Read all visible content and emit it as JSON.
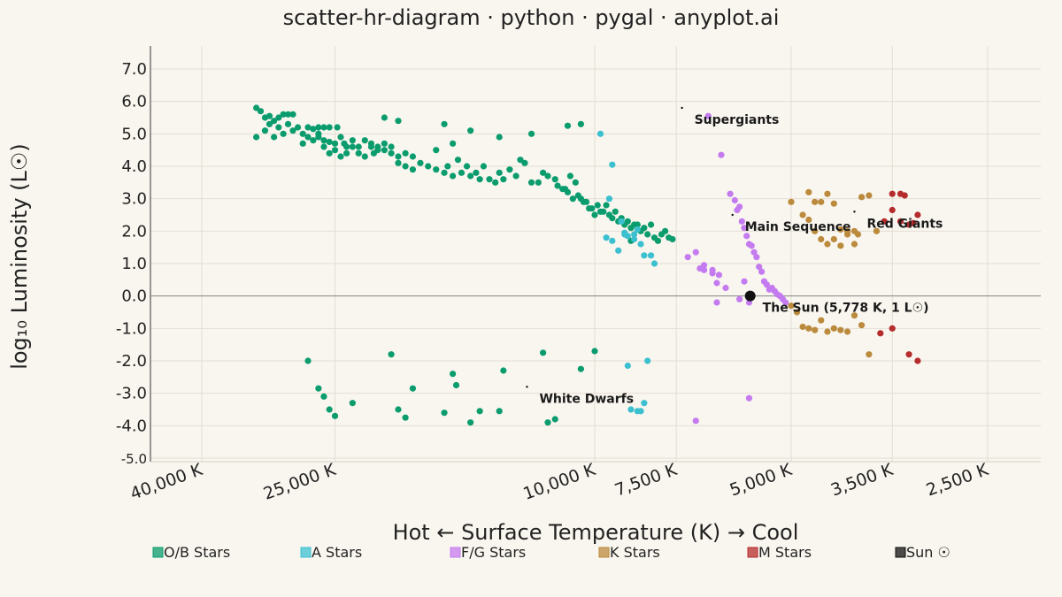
{
  "page": {
    "title": "scatter-hr-diagram · python · pygal · anyplot.ai"
  },
  "colors": {
    "background": "#F9F6EF",
    "grid": "#E3DED4",
    "ob": "#0B9C6E",
    "a": "#3CC0D0",
    "fg": "#C57BF0",
    "k": "#BB8A3C",
    "m": "#B52C2C",
    "sun": "#111111"
  },
  "chart_data": {
    "type": "scatter",
    "title": "scatter-hr-diagram · python · pygal · anyplot.ai",
    "xlabel": "Hot ← Surface Temperature (K) → Cool",
    "ylabel": "log₁₀ Luminosity (L☉)",
    "x_scale": "log-reversed",
    "xlim": [
      40000,
      2200
    ],
    "ylim": [
      -5,
      7.3
    ],
    "x_ticks": [
      {
        "value": 40000,
        "label": "40,000 K"
      },
      {
        "value": 25000,
        "label": "25,000 K"
      },
      {
        "value": 10000,
        "label": "10,000 K"
      },
      {
        "value": 7500,
        "label": "7,500 K"
      },
      {
        "value": 5000,
        "label": "5,000 K"
      },
      {
        "value": 3500,
        "label": "3,500 K"
      },
      {
        "value": 2500,
        "label": "2,500 K"
      }
    ],
    "y_ticks": [
      {
        "value": 7,
        "label": "7.0"
      },
      {
        "value": 6,
        "label": "6.0"
      },
      {
        "value": 5,
        "label": "5.0"
      },
      {
        "value": 4,
        "label": "4.0"
      },
      {
        "value": 3,
        "label": "3.0"
      },
      {
        "value": 2,
        "label": "2.0"
      },
      {
        "value": 1,
        "label": "1.0"
      },
      {
        "value": 0,
        "label": "0.0"
      },
      {
        "value": -1,
        "label": "-1.0"
      },
      {
        "value": -2,
        "label": "-2.0"
      },
      {
        "value": -3,
        "label": "-3.0"
      },
      {
        "value": -4,
        "label": "-4.0"
      },
      {
        "value": -5,
        "label": "-5.0"
      }
    ],
    "grid": true,
    "legend_position": "bottom",
    "series": [
      {
        "name": "O/B Stars",
        "color": "#0B9C6E",
        "points": [
          [
            33000,
            5.8
          ],
          [
            32500,
            5.7
          ],
          [
            32000,
            5.5
          ],
          [
            31500,
            5.55
          ],
          [
            31000,
            5.4
          ],
          [
            30500,
            5.5
          ],
          [
            30000,
            5.6
          ],
          [
            29500,
            5.6
          ],
          [
            29000,
            5.6
          ],
          [
            33000,
            4.9
          ],
          [
            32000,
            5.1
          ],
          [
            31500,
            5.3
          ],
          [
            31000,
            4.9
          ],
          [
            30500,
            5.2
          ],
          [
            30000,
            5.0
          ],
          [
            29500,
            5.3
          ],
          [
            29000,
            5.1
          ],
          [
            28500,
            5.2
          ],
          [
            28000,
            5.0
          ],
          [
            27500,
            5.2
          ],
          [
            27000,
            5.15
          ],
          [
            26500,
            5.2
          ],
          [
            26000,
            5.2
          ],
          [
            25500,
            5.2
          ],
          [
            28000,
            4.7
          ],
          [
            27500,
            4.9
          ],
          [
            27000,
            4.8
          ],
          [
            26500,
            4.9
          ],
          [
            26000,
            4.8
          ],
          [
            25500,
            4.75
          ],
          [
            25000,
            4.7
          ],
          [
            24800,
            5.2
          ],
          [
            24500,
            4.9
          ],
          [
            24200,
            4.7
          ],
          [
            24000,
            4.6
          ],
          [
            23500,
            4.8
          ],
          [
            23000,
            4.6
          ],
          [
            22500,
            4.8
          ],
          [
            22000,
            4.6
          ],
          [
            21800,
            4.4
          ],
          [
            21500,
            4.5
          ],
          [
            21000,
            4.5
          ],
          [
            20500,
            4.4
          ],
          [
            20000,
            4.3
          ],
          [
            19500,
            4.4
          ],
          [
            19000,
            4.3
          ],
          [
            26500,
            5.0
          ],
          [
            26000,
            4.6
          ],
          [
            25500,
            4.4
          ],
          [
            25000,
            4.5
          ],
          [
            24500,
            4.3
          ],
          [
            24000,
            4.4
          ],
          [
            23500,
            4.6
          ],
          [
            23000,
            4.4
          ],
          [
            22500,
            4.3
          ],
          [
            22000,
            4.7
          ],
          [
            21500,
            4.6
          ],
          [
            21000,
            4.7
          ],
          [
            20500,
            4.6
          ],
          [
            20000,
            4.1
          ],
          [
            19500,
            4.0
          ],
          [
            19000,
            3.9
          ],
          [
            18500,
            4.1
          ],
          [
            18000,
            4.0
          ],
          [
            17500,
            3.9
          ],
          [
            17000,
            3.8
          ],
          [
            16800,
            4.0
          ],
          [
            16500,
            3.7
          ],
          [
            16200,
            4.2
          ],
          [
            16000,
            3.8
          ],
          [
            15700,
            4.0
          ],
          [
            15500,
            3.7
          ],
          [
            15200,
            3.8
          ],
          [
            15000,
            3.6
          ],
          [
            14800,
            4.0
          ],
          [
            14500,
            3.6
          ],
          [
            14200,
            3.5
          ],
          [
            14000,
            3.8
          ],
          [
            13800,
            3.6
          ],
          [
            13500,
            3.9
          ],
          [
            13200,
            3.7
          ],
          [
            13000,
            4.2
          ],
          [
            12800,
            4.1
          ],
          [
            12500,
            3.5
          ],
          [
            12200,
            3.5
          ],
          [
            12000,
            3.8
          ],
          [
            11800,
            3.7
          ],
          [
            11500,
            3.6
          ],
          [
            11200,
            3.3
          ],
          [
            11000,
            3.2
          ],
          [
            10800,
            3.0
          ],
          [
            10600,
            3.1
          ],
          [
            10400,
            2.9
          ],
          [
            10200,
            2.7
          ],
          [
            10000,
            2.5
          ],
          [
            9800,
            2.6
          ],
          [
            9600,
            2.8
          ],
          [
            9400,
            2.4
          ],
          [
            9200,
            2.3
          ],
          [
            9000,
            2.2
          ],
          [
            8800,
            2.1
          ],
          [
            8600,
            2.2
          ],
          [
            11400,
            3.4
          ],
          [
            11100,
            3.3
          ],
          [
            10900,
            3.7
          ],
          [
            10700,
            3.5
          ],
          [
            10500,
            3.0
          ],
          [
            10300,
            2.9
          ],
          [
            10100,
            2.7
          ],
          [
            9900,
            2.8
          ],
          [
            9700,
            2.6
          ],
          [
            9500,
            2.5
          ],
          [
            9300,
            2.6
          ],
          [
            9100,
            2.4
          ],
          [
            8900,
            2.3
          ],
          [
            8700,
            2.2
          ],
          [
            8500,
            2.0
          ],
          [
            8400,
            2.1
          ],
          [
            8300,
            1.9
          ],
          [
            8200,
            2.2
          ],
          [
            8100,
            1.8
          ],
          [
            8000,
            1.7
          ],
          [
            7900,
            1.9
          ],
          [
            7800,
            2.0
          ],
          [
            7700,
            1.8
          ],
          [
            7600,
            1.75
          ],
          [
            21000,
            5.5
          ],
          [
            20000,
            5.4
          ],
          [
            17000,
            5.3
          ],
          [
            15500,
            5.1
          ],
          [
            14000,
            4.9
          ],
          [
            12500,
            5.0
          ],
          [
            11000,
            5.25
          ],
          [
            10500,
            5.3
          ],
          [
            17500,
            4.5
          ],
          [
            16500,
            4.7
          ],
          [
            8800,
            1.7
          ],
          [
            27500,
            -2.0
          ],
          [
            26500,
            -2.85
          ],
          [
            26000,
            -3.1
          ],
          [
            25500,
            -3.5
          ],
          [
            25000,
            -3.7
          ],
          [
            23500,
            -3.3
          ],
          [
            20500,
            -1.8
          ],
          [
            20000,
            -3.5
          ],
          [
            19500,
            -3.75
          ],
          [
            19000,
            -2.85
          ],
          [
            17000,
            -3.6
          ],
          [
            16500,
            -2.4
          ],
          [
            16300,
            -2.75
          ],
          [
            15500,
            -3.9
          ],
          [
            15000,
            -3.55
          ],
          [
            14000,
            -3.55
          ],
          [
            13800,
            -2.3
          ],
          [
            12000,
            -1.75
          ],
          [
            11800,
            -3.9
          ],
          [
            11500,
            -3.8
          ],
          [
            10500,
            -2.25
          ],
          [
            10000,
            -1.7
          ]
        ]
      },
      {
        "name": "A Stars",
        "color": "#3CC0D0",
        "points": [
          [
            9800,
            5.0
          ],
          [
            9400,
            4.05
          ],
          [
            9500,
            3.0
          ],
          [
            9100,
            2.3
          ],
          [
            9000,
            1.95
          ],
          [
            8700,
            1.9
          ],
          [
            8500,
            1.6
          ],
          [
            8200,
            1.25
          ],
          [
            9200,
            1.4
          ],
          [
            9600,
            1.8
          ],
          [
            9400,
            1.7
          ],
          [
            8900,
            1.85
          ],
          [
            8600,
            2.05
          ],
          [
            8400,
            1.25
          ],
          [
            8100,
            1.0
          ],
          [
            8700,
            1.75
          ],
          [
            9000,
            1.9
          ],
          [
            8800,
            -3.5
          ],
          [
            8600,
            -3.55
          ],
          [
            8500,
            -3.55
          ],
          [
            8400,
            -3.3
          ],
          [
            8300,
            -2.0
          ],
          [
            8900,
            -2.15
          ]
        ]
      },
      {
        "name": "F/G Stars",
        "color": "#C57BF0",
        "points": [
          [
            6700,
            5.55
          ],
          [
            6400,
            4.35
          ],
          [
            6200,
            3.15
          ],
          [
            6100,
            2.95
          ],
          [
            6050,
            2.65
          ],
          [
            6000,
            2.75
          ],
          [
            5950,
            2.3
          ],
          [
            5900,
            2.1
          ],
          [
            5850,
            1.85
          ],
          [
            5800,
            1.6
          ],
          [
            5750,
            1.55
          ],
          [
            5700,
            1.35
          ],
          [
            5650,
            1.2
          ],
          [
            5600,
            0.9
          ],
          [
            5550,
            0.75
          ],
          [
            5500,
            0.45
          ],
          [
            5450,
            0.35
          ],
          [
            5400,
            0.2
          ],
          [
            5350,
            0.25
          ],
          [
            5300,
            0.15
          ],
          [
            5250,
            0.05
          ],
          [
            5200,
            0.0
          ],
          [
            5150,
            -0.1
          ],
          [
            5100,
            -0.2
          ],
          [
            7200,
            1.2
          ],
          [
            7000,
            1.35
          ],
          [
            6900,
            0.85
          ],
          [
            6800,
            0.8
          ],
          [
            6600,
            0.7
          ],
          [
            6500,
            0.4
          ],
          [
            6450,
            0.65
          ],
          [
            6300,
            0.25
          ],
          [
            6000,
            -0.1
          ],
          [
            5800,
            -0.2
          ],
          [
            6500,
            -0.2
          ],
          [
            5900,
            0.45
          ],
          [
            5800,
            -3.15
          ],
          [
            7000,
            -3.85
          ],
          [
            6600,
            0.8
          ],
          [
            6800,
            0.95
          ]
        ]
      },
      {
        "name": "K Stars",
        "color": "#BB8A3C",
        "points": [
          [
            5000,
            2.9
          ],
          [
            4700,
            3.2
          ],
          [
            4600,
            2.9
          ],
          [
            4500,
            2.9
          ],
          [
            4400,
            3.15
          ],
          [
            4300,
            2.85
          ],
          [
            4200,
            2.05
          ],
          [
            4100,
            1.9
          ],
          [
            4000,
            2.0
          ],
          [
            3900,
            3.05
          ],
          [
            3800,
            3.1
          ],
          [
            3700,
            2.0
          ],
          [
            4800,
            2.5
          ],
          [
            4700,
            2.35
          ],
          [
            4600,
            2.0
          ],
          [
            4500,
            1.75
          ],
          [
            4400,
            1.6
          ],
          [
            4300,
            1.75
          ],
          [
            4200,
            1.55
          ],
          [
            4100,
            2.0
          ],
          [
            4000,
            1.6
          ],
          [
            3950,
            1.9
          ],
          [
            5000,
            -0.3
          ],
          [
            4900,
            -0.5
          ],
          [
            4800,
            -0.95
          ],
          [
            4700,
            -1.0
          ],
          [
            4600,
            -1.05
          ],
          [
            4500,
            -0.75
          ],
          [
            4400,
            -1.1
          ],
          [
            4300,
            -1.0
          ],
          [
            4200,
            -1.05
          ],
          [
            4100,
            -1.1
          ],
          [
            4000,
            -0.6
          ],
          [
            3900,
            -0.9
          ],
          [
            3800,
            -1.8
          ]
        ]
      },
      {
        "name": "M Stars",
        "color": "#B52C2C",
        "points": [
          [
            3500,
            3.15
          ],
          [
            3400,
            3.15
          ],
          [
            3350,
            3.1
          ],
          [
            3500,
            2.65
          ],
          [
            3400,
            2.3
          ],
          [
            3300,
            2.2
          ],
          [
            3200,
            2.5
          ],
          [
            3250,
            2.25
          ],
          [
            3600,
            2.3
          ],
          [
            3500,
            -1.0
          ],
          [
            3650,
            -1.15
          ],
          [
            3300,
            -1.8
          ],
          [
            3200,
            -2.0
          ]
        ]
      },
      {
        "name": "Sun ☉",
        "color": "#111111",
        "points": [
          [
            5778,
            0.0
          ]
        ]
      }
    ],
    "annotations": [
      {
        "text": "Supergiants",
        "x": 7350,
        "y": 5.8
      },
      {
        "text": "Main Sequence",
        "x": 6150,
        "y": 2.5
      },
      {
        "text": "Red Giants",
        "x": 4000,
        "y": 2.6
      },
      {
        "text": "The Sun (5,778 K, 1 L☉)",
        "x": 5778,
        "y": 0.0
      },
      {
        "text": "White Dwarfs",
        "x": 12700,
        "y": -2.8
      }
    ]
  }
}
